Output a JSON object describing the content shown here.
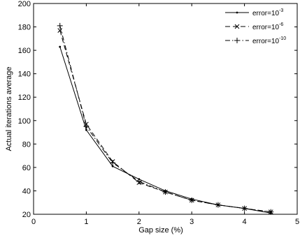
{
  "chart_data": {
    "type": "line",
    "title": "",
    "xlabel": "Gap size (%)",
    "ylabel": "Actual iterations average",
    "xlim": [
      0,
      5
    ],
    "ylim": [
      20,
      200
    ],
    "xticks": [
      "0",
      "1",
      "2",
      "3",
      "4",
      "5"
    ],
    "yticks": [
      "20",
      "40",
      "60",
      "80",
      "100",
      "120",
      "140",
      "160",
      "180",
      "200"
    ],
    "grid": false,
    "legend_position": "top-right",
    "series": [
      {
        "name": "error=10",
        "name_exponent": "-3",
        "line_style": "solid",
        "marker": "dot",
        "x": [
          0.5,
          1.0,
          1.5,
          2.0,
          2.5,
          3.0,
          3.5,
          4.0,
          4.5
        ],
        "y": [
          163,
          92,
          61,
          50,
          40,
          33,
          28,
          25,
          21
        ]
      },
      {
        "name": "error=10",
        "name_exponent": "-6",
        "line_style": "dashed",
        "marker": "x",
        "x": [
          0.5,
          1.0,
          1.5,
          2.0,
          2.5,
          3.0,
          3.5,
          4.0,
          4.5
        ],
        "y": [
          177,
          97,
          65,
          47,
          39,
          32,
          28,
          25,
          22
        ]
      },
      {
        "name": "error=10",
        "name_exponent": "-10",
        "line_style": "dashdot",
        "marker": "plus",
        "x": [
          0.5,
          1.0,
          1.5,
          2.0,
          2.5,
          3.0,
          3.5,
          4.0,
          4.5
        ],
        "y": [
          181,
          95,
          64,
          48,
          39,
          32,
          28,
          25,
          22
        ]
      }
    ]
  }
}
